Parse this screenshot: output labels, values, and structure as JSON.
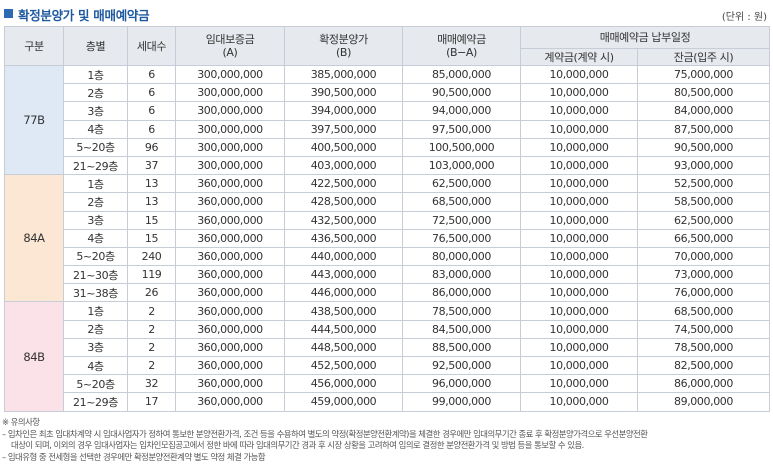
{
  "header": {
    "title": "확정분양가 및 매매예약금",
    "unit_note": "(단위 : 원)"
  },
  "table": {
    "headers": {
      "type": "구분",
      "floor": "층별",
      "households": "세대수",
      "deposit_line1": "임대보증금",
      "deposit_line2": "(A)",
      "price_line1": "확정분양가",
      "price_line2": "(B)",
      "reservation_line1": "매매예약금",
      "reservation_line2": "(B−A)",
      "schedule": "매매예약금 납부일정",
      "contract": "계약금(계약 시)",
      "balance": "잔금(입주 시)"
    },
    "groups": [
      {
        "type": "77B",
        "rows": [
          {
            "floor": "1층",
            "households": "6",
            "deposit": "300,000,000",
            "price": "385,000,000",
            "reservation": "85,000,000",
            "contract": "10,000,000",
            "balance": "75,000,000"
          },
          {
            "floor": "2층",
            "households": "6",
            "deposit": "300,000,000",
            "price": "390,500,000",
            "reservation": "90,500,000",
            "contract": "10,000,000",
            "balance": "80,500,000"
          },
          {
            "floor": "3층",
            "households": "6",
            "deposit": "300,000,000",
            "price": "394,000,000",
            "reservation": "94,000,000",
            "contract": "10,000,000",
            "balance": "84,000,000"
          },
          {
            "floor": "4층",
            "households": "6",
            "deposit": "300,000,000",
            "price": "397,500,000",
            "reservation": "97,500,000",
            "contract": "10,000,000",
            "balance": "87,500,000"
          },
          {
            "floor": "5~20층",
            "households": "96",
            "deposit": "300,000,000",
            "price": "400,500,000",
            "reservation": "100,500,000",
            "contract": "10,000,000",
            "balance": "90,500,000"
          },
          {
            "floor": "21~29층",
            "households": "37",
            "deposit": "300,000,000",
            "price": "403,000,000",
            "reservation": "103,000,000",
            "contract": "10,000,000",
            "balance": "93,000,000"
          }
        ]
      },
      {
        "type": "84A",
        "rows": [
          {
            "floor": "1층",
            "households": "13",
            "deposit": "360,000,000",
            "price": "422,500,000",
            "reservation": "62,500,000",
            "contract": "10,000,000",
            "balance": "52,500,000"
          },
          {
            "floor": "2층",
            "households": "13",
            "deposit": "360,000,000",
            "price": "428,500,000",
            "reservation": "68,500,000",
            "contract": "10,000,000",
            "balance": "58,500,000"
          },
          {
            "floor": "3층",
            "households": "15",
            "deposit": "360,000,000",
            "price": "432,500,000",
            "reservation": "72,500,000",
            "contract": "10,000,000",
            "balance": "62,500,000"
          },
          {
            "floor": "4층",
            "households": "15",
            "deposit": "360,000,000",
            "price": "436,500,000",
            "reservation": "76,500,000",
            "contract": "10,000,000",
            "balance": "66,500,000"
          },
          {
            "floor": "5~20층",
            "households": "240",
            "deposit": "360,000,000",
            "price": "440,000,000",
            "reservation": "80,000,000",
            "contract": "10,000,000",
            "balance": "70,000,000"
          },
          {
            "floor": "21~30층",
            "households": "119",
            "deposit": "360,000,000",
            "price": "443,000,000",
            "reservation": "83,000,000",
            "contract": "10,000,000",
            "balance": "73,000,000"
          },
          {
            "floor": "31~38층",
            "households": "26",
            "deposit": "360,000,000",
            "price": "446,000,000",
            "reservation": "86,000,000",
            "contract": "10,000,000",
            "balance": "76,000,000"
          }
        ]
      },
      {
        "type": "84B",
        "rows": [
          {
            "floor": "1층",
            "households": "2",
            "deposit": "360,000,000",
            "price": "438,500,000",
            "reservation": "78,500,000",
            "contract": "10,000,000",
            "balance": "68,500,000"
          },
          {
            "floor": "2층",
            "households": "2",
            "deposit": "360,000,000",
            "price": "444,500,000",
            "reservation": "84,500,000",
            "contract": "10,000,000",
            "balance": "74,500,000"
          },
          {
            "floor": "3층",
            "households": "2",
            "deposit": "360,000,000",
            "price": "448,500,000",
            "reservation": "88,500,000",
            "contract": "10,000,000",
            "balance": "78,500,000"
          },
          {
            "floor": "4층",
            "households": "2",
            "deposit": "360,000,000",
            "price": "452,500,000",
            "reservation": "92,500,000",
            "contract": "10,000,000",
            "balance": "82,500,000"
          },
          {
            "floor": "5~20층",
            "households": "32",
            "deposit": "360,000,000",
            "price": "456,000,000",
            "reservation": "96,000,000",
            "contract": "10,000,000",
            "balance": "86,000,000"
          },
          {
            "floor": "21~29층",
            "households": "17",
            "deposit": "360,000,000",
            "price": "459,000,000",
            "reservation": "99,000,000",
            "contract": "10,000,000",
            "balance": "89,000,000"
          }
        ]
      }
    ]
  },
  "notes": {
    "heading": "※ 유의사항",
    "line1": "– 임차인은 최초 임대차계약 시 임대사업자가 정하여 통보한 분양전환가격, 조건 등을 수용하여 별도의 약정(확정분양전환계약)을 체결한 경우에만 임대의무기간 종료 후 확정분양가격으로 우선분양전환",
    "line2": "대상이 되며, 이외의 경우 임대사업자는 입차인모집공고에서 정한 바에 따라 임대의무기간 경과 후 시장 상황을 고려하여 임의로 결정한 분양전환가격 및 방법 등을 통보할 수 있음.",
    "line3": "– 임대유형 중 전세형을 선택한 경우에만 확정분양전환계약 별도 약정 체결 가능함"
  }
}
